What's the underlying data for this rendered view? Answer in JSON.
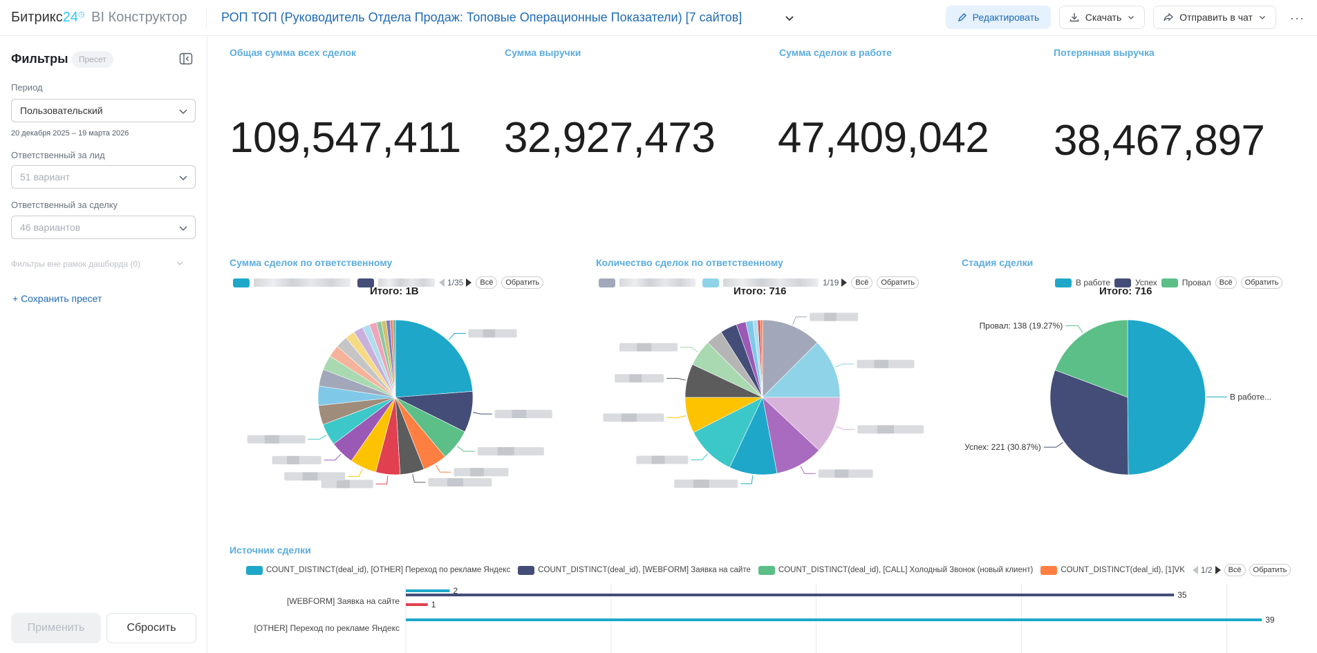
{
  "header": {
    "logo_brand": "Битрикс",
    "logo_num": "24",
    "logo_clock": "◷",
    "logo_sub": "BI Конструктор",
    "dashboard_title": "РОП ТОП (Руководитель Отдела Продаж: Топовые Операционные Показатели) [7 сайтов]",
    "edit_label": "Редактировать",
    "download_label": "Скачать",
    "send_label": "Отправить в чат",
    "more_label": "···"
  },
  "sidebar": {
    "title": "Фильтры",
    "preset_badge": "Пресет",
    "period_label": "Период",
    "period_value": "Пользовательский",
    "date_range": "20 декабря 2025 – 19 марта 2026",
    "lead_owner_label": "Ответственный за лид",
    "lead_owner_value": "51 вариант",
    "deal_owner_label": "Ответственный за сделку",
    "deal_owner_value": "46 вариантов",
    "outside_filters": "Фильтры вне рамок дашборда (0)",
    "save_preset": "+ Сохранить пресет",
    "apply_label": "Применить",
    "reset_label": "Сбросить"
  },
  "kpis": [
    {
      "title": "Общая сумма всех сделок",
      "value": "109,547,411"
    },
    {
      "title": "Сумма выручки",
      "value": "32,927,473"
    },
    {
      "title": "Сумма сделок в работе",
      "value": "47,409,042"
    },
    {
      "title": "Потерянная выручка",
      "value": "38,467,897"
    }
  ],
  "controls": {
    "all_label": "Всё",
    "invert_label": "Обратить"
  },
  "colors": {
    "accent": "#1f6ab5",
    "panel_title": "#5cacde",
    "in_progress": "#1ea7c9",
    "success": "#434d78",
    "fail": "#5bbf87"
  },
  "chart_data": [
    {
      "type": "pie",
      "title": "Сумма сделок по ответственному",
      "total": "Итого: 1B",
      "pager": "1/35",
      "note": "Названия сегментов скрыты (размыты) на скриншоте",
      "values": [
        23.5,
        8.5,
        6.5,
        5.0,
        5.0,
        5.0,
        5.5,
        5.0,
        4.5,
        4.0,
        4.0,
        3.5,
        3.0,
        2.5,
        2.5,
        2.0,
        2.0,
        1.5,
        1.5,
        1.0,
        1.0,
        0.8,
        0.6,
        0.5
      ],
      "colors": [
        "#1ea7c9",
        "#434d78",
        "#5bbf87",
        "#ff7f42",
        "#5c5c5c",
        "#e0404f",
        "#fdc200",
        "#9b59b6",
        "#3cc8c8",
        "#a08c7a",
        "#80c8e8",
        "#a2a8ba",
        "#a9d9b0",
        "#f4b39a",
        "#c5c5c5",
        "#f7da84",
        "#c8b0dc",
        "#b0ddee",
        "#f0a5b8",
        "#8ac8a0",
        "#d4c06a",
        "#7a7ac8",
        "#e8886a",
        "#6ab0a0"
      ]
    },
    {
      "type": "pie",
      "title": "Количество сделок по ответственному",
      "total": "Итого: 716",
      "pager": "1/19",
      "note": "Названия сегментов скрыты (размыты) на скриншоте",
      "values": [
        12.5,
        12.5,
        12.0,
        10.0,
        10.0,
        10.5,
        7.5,
        7.0,
        5.5,
        3.5,
        3.5,
        2.0,
        1.5,
        1.0,
        0.5,
        0.5
      ],
      "colors": [
        "#a2a8ba",
        "#8fd3e8",
        "#d7b3da",
        "#a96bbf",
        "#1ea7c9",
        "#3cc8c8",
        "#fdc200",
        "#5c5c5c",
        "#a9d9b0",
        "#b5b5b5",
        "#434d78",
        "#9b59b6",
        "#80c8e8",
        "#b0ddee",
        "#e0404f",
        "#ff7f42"
      ]
    },
    {
      "type": "pie",
      "title": "Стадия сделки",
      "total": "Итого: 716",
      "categories": [
        "В работе",
        "Успех",
        "Провал"
      ],
      "values": [
        357,
        221,
        138
      ],
      "labels": [
        "В работе...",
        "Успех: 221 (30.87%)",
        "Провал: 138 (19.27%)"
      ],
      "colors": [
        "#1ea7c9",
        "#434d78",
        "#5bbf87"
      ]
    },
    {
      "type": "bar",
      "title": "Источник сделки",
      "pager": "1/2",
      "legend": [
        {
          "name": "COUNT_DISTINCT(deal_id), [OTHER] Переход по рекламе Яндекс",
          "color": "#1ea7c9"
        },
        {
          "name": "COUNT_DISTINCT(deal_id), [WEBFORM] Заявка на сайте",
          "color": "#434d78"
        },
        {
          "name": "COUNT_DISTINCT(deal_id), [CALL] Холодный Звонок (новый клиент)",
          "color": "#5bbf87"
        },
        {
          "name": "COUNT_DISTINCT(deal_id), [1]VK",
          "color": "#ff7f42"
        }
      ],
      "categories": [
        "[WEBFORM] Заявка на сайте",
        "[OTHER] Переход по рекламе Яндекс"
      ],
      "bars": [
        {
          "category": "[WEBFORM] Заявка на сайте",
          "color": "#1ea7c9",
          "value": 2
        },
        {
          "category": "[WEBFORM] Заявка на сайте",
          "color": "#434d78",
          "value": 35
        },
        {
          "category": "[WEBFORM] Заявка на сайте",
          "color": "#e0404f",
          "value": 1
        },
        {
          "category": "[OTHER] Переход по рекламе Яндекс",
          "color": "#1ea7c9",
          "value": 39
        }
      ],
      "xlim": [
        0,
        40
      ]
    }
  ]
}
